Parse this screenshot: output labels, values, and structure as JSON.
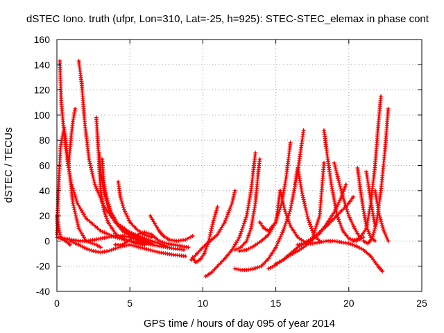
{
  "chart_data": {
    "type": "scatter",
    "title": "dSTEC Iono. truth (ufpr, Lon=310, Lat=-25, h=925): STEC-STEC_elemax in phase cont",
    "xlabel": "GPS time / hours of day 095 of year 2014",
    "ylabel": "dSTEC  / TECUs",
    "xlim": [
      0,
      25
    ],
    "ylim": [
      -40,
      160
    ],
    "xticks": [
      0,
      5,
      10,
      15,
      20,
      25
    ],
    "yticks": [
      -40,
      -20,
      0,
      20,
      40,
      60,
      80,
      100,
      120,
      140,
      160
    ],
    "grid": true,
    "marker": "+",
    "color": "#ff0000",
    "series": [
      {
        "x": [
          0.0,
          0.15,
          0.3,
          0.6,
          0.9
        ],
        "y": [
          20,
          8,
          2,
          0,
          -3
        ]
      },
      {
        "x": [
          0.0,
          0.1,
          0.25,
          0.5,
          0.8,
          1.1,
          1.5,
          2.0,
          2.7,
          3.0
        ],
        "y": [
          5,
          40,
          75,
          90,
          60,
          30,
          10,
          0,
          -3,
          -5
        ]
      },
      {
        "x": [
          0.2,
          0.3,
          0.5,
          0.7,
          1.0,
          1.4,
          2.0,
          3.0,
          4.0,
          5.0,
          6.0,
          7.0,
          8.0,
          8.7
        ],
        "y": [
          143,
          110,
          85,
          65,
          45,
          30,
          18,
          8,
          3,
          0,
          -2,
          -4,
          -6,
          -7
        ]
      },
      {
        "x": [
          0.0,
          0.5,
          1.0,
          1.5,
          2.0,
          2.6,
          3.0
        ],
        "y": [
          3,
          2,
          1,
          0,
          0,
          1,
          2
        ]
      },
      {
        "x": [
          0.8,
          0.95,
          1.1,
          1.25
        ],
        "y": [
          60,
          80,
          95,
          105
        ]
      },
      {
        "x": [
          1.5,
          1.7,
          1.9,
          2.2,
          2.6,
          3.2,
          4.0,
          5.0,
          6.0,
          7.0,
          7.5
        ],
        "y": [
          143,
          125,
          95,
          65,
          45,
          28,
          15,
          7,
          2,
          -2,
          -4
        ]
      },
      {
        "x": [
          0.9,
          1.5,
          2.0,
          2.5,
          3.0,
          3.5,
          4.0,
          4.5,
          5.0,
          6.0,
          7.0,
          8.0,
          8.8
        ],
        "y": [
          0,
          -3,
          -6,
          -8,
          -9,
          -8,
          -6,
          -4,
          -3,
          -6,
          -9,
          -11,
          -12
        ]
      },
      {
        "x": [
          2.7,
          2.8,
          2.9,
          3.0,
          3.2,
          3.5,
          4.0,
          4.5,
          5.0,
          5.5,
          6.0
        ],
        "y": [
          98,
          80,
          60,
          40,
          25,
          15,
          6,
          2,
          0,
          -2,
          -3
        ]
      },
      {
        "x": [
          2.9,
          3.0,
          3.2,
          3.5,
          4.0,
          4.5,
          5.0,
          5.5,
          6.0
        ],
        "y": [
          70,
          55,
          40,
          27,
          15,
          8,
          4,
          1,
          -1
        ]
      },
      {
        "x": [
          3.1,
          3.2,
          3.4,
          3.7,
          4.2,
          4.8,
          5.5,
          6.2
        ],
        "y": [
          65,
          48,
          35,
          23,
          13,
          7,
          3,
          0
        ]
      },
      {
        "x": [
          4.2,
          4.35,
          4.6,
          5.0,
          5.5,
          6.0,
          6.5
        ],
        "y": [
          47,
          35,
          25,
          15,
          9,
          5,
          3
        ]
      },
      {
        "x": [
          3.0,
          3.5,
          4.0,
          4.5,
          5.0,
          5.5,
          6.0,
          6.5
        ],
        "y": [
          2,
          3,
          4,
          4,
          3,
          2,
          0,
          -2
        ]
      },
      {
        "x": [
          6.4,
          6.7,
          7.0,
          7.3,
          7.7,
          8.2,
          8.8,
          9.3
        ],
        "y": [
          20,
          14,
          8,
          4,
          1,
          0,
          1,
          4
        ]
      },
      {
        "x": [
          4.0,
          4.5,
          5.0,
          5.5,
          6.0,
          6.5,
          7.0,
          7.5,
          8.0,
          8.5,
          9.0
        ],
        "y": [
          -3,
          -3,
          1,
          5,
          7,
          5,
          0,
          -2,
          -3,
          -4,
          -5
        ]
      },
      {
        "x": [
          9.3,
          9.5,
          9.8,
          10.1,
          10.4,
          10.7,
          11.0
        ],
        "y": [
          -13,
          -17,
          -15,
          -10,
          0,
          15,
          27
        ]
      },
      {
        "x": [
          9.2,
          9.6,
          10.0,
          10.5,
          11.0,
          11.5,
          12.0,
          12.2
        ],
        "y": [
          -15,
          -10,
          -5,
          0,
          5,
          15,
          30,
          40
        ]
      },
      {
        "x": [
          10.2,
          10.6,
          11.0,
          11.5,
          12.0,
          12.5,
          13.0,
          13.3,
          13.5,
          13.6
        ],
        "y": [
          -28,
          -25,
          -20,
          -14,
          -7,
          3,
          20,
          40,
          60,
          70
        ]
      },
      {
        "x": [
          12.2,
          12.6,
          13.0,
          13.3,
          13.6,
          13.8,
          13.9
        ],
        "y": [
          -7,
          -5,
          0,
          10,
          30,
          55,
          65
        ]
      },
      {
        "x": [
          12.5,
          13.0,
          13.5,
          14.0,
          14.5,
          15.0,
          15.4,
          15.7,
          16.0
        ],
        "y": [
          -8,
          -7,
          -4,
          0,
          5,
          15,
          30,
          50,
          78
        ]
      },
      {
        "x": [
          12.2,
          12.6,
          13.0,
          13.5,
          14.0,
          14.5,
          15.0,
          15.5,
          16.0,
          16.5,
          16.9
        ],
        "y": [
          -22,
          -23,
          -23,
          -22,
          -20,
          -14,
          -5,
          8,
          25,
          55,
          88
        ]
      },
      {
        "x": [
          13.9,
          14.2,
          14.5,
          15.0,
          15.3
        ],
        "y": [
          15,
          10,
          8,
          15,
          40
        ]
      },
      {
        "x": [
          15.3,
          15.6,
          16.0,
          16.5,
          17.0,
          17.5,
          18.0,
          18.3
        ],
        "y": [
          40,
          25,
          12,
          3,
          -1,
          2,
          20,
          62
        ]
      },
      {
        "x": [
          16.3,
          16.5,
          16.8,
          17.2,
          17.6,
          18.0
        ],
        "y": [
          45,
          58,
          38,
          18,
          5,
          0
        ]
      },
      {
        "x": [
          18.3,
          18.5,
          18.8,
          19.2,
          19.6,
          20.0,
          20.5,
          21.0
        ],
        "y": [
          88,
          70,
          45,
          20,
          8,
          2,
          0,
          3
        ]
      },
      {
        "x": [
          15.0,
          15.5,
          16.0,
          16.5,
          17.0,
          17.5,
          18.0,
          18.5,
          19.0,
          19.5,
          19.8
        ],
        "y": [
          -18,
          -15,
          -11,
          -8,
          -4,
          1,
          6,
          14,
          23,
          35,
          45
        ]
      },
      {
        "x": [
          14.5,
          15.0,
          15.5,
          16.0,
          16.5,
          17.0,
          17.5,
          18.0,
          18.5,
          19.0,
          19.5,
          20.0,
          20.3
        ],
        "y": [
          -22,
          -19,
          -15,
          -10,
          -5,
          -1,
          2,
          7,
          12,
          18,
          24,
          30,
          35
        ]
      },
      {
        "x": [
          16.5,
          17.0,
          17.5,
          18.0,
          18.5,
          19.0,
          19.5,
          20.0,
          20.5,
          21.0,
          21.5,
          22.0,
          22.3
        ],
        "y": [
          -3,
          -2,
          -2,
          -1,
          0,
          0,
          -1,
          -2,
          -4,
          -7,
          -12,
          -20,
          -24
        ]
      },
      {
        "x": [
          19.0,
          19.3,
          19.6,
          20.0,
          20.4,
          20.8
        ],
        "y": [
          62,
          48,
          35,
          20,
          10,
          2
        ]
      },
      {
        "x": [
          20.6,
          20.8,
          21.0,
          21.2,
          21.5,
          21.8
        ],
        "y": [
          58,
          40,
          25,
          12,
          3,
          0
        ]
      },
      {
        "x": [
          20.3,
          20.8,
          21.2,
          21.5,
          21.8,
          22.0,
          22.2
        ],
        "y": [
          0,
          3,
          10,
          30,
          60,
          90,
          115
        ]
      },
      {
        "x": [
          21.2,
          21.4,
          21.6,
          21.8
        ],
        "y": [
          55,
          40,
          25,
          12
        ]
      },
      {
        "x": [
          21.0,
          21.3,
          21.6,
          21.9,
          22.2,
          22.5,
          22.7
        ],
        "y": [
          0,
          -2,
          2,
          15,
          40,
          75,
          105
        ]
      },
      {
        "x": [
          21.8,
          22.1,
          22.4,
          22.7
        ],
        "y": [
          40,
          20,
          8,
          0
        ]
      }
    ]
  }
}
